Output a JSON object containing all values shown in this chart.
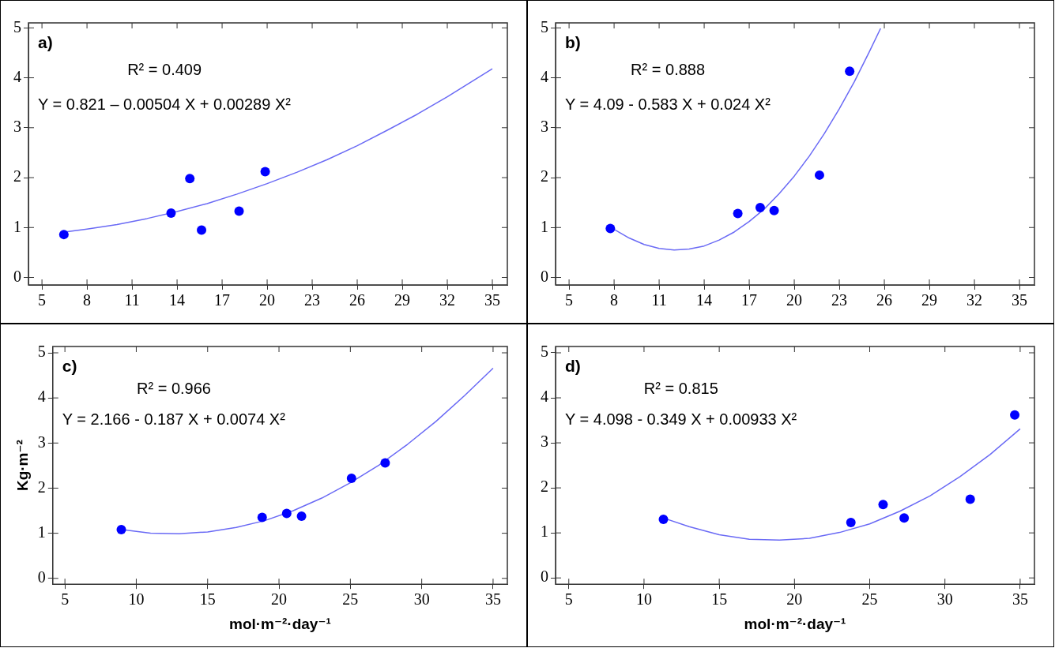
{
  "chart_data": [
    {
      "type": "scatter",
      "annotations": [
        "a)",
        "R² = 0.409",
        "Y = 0.821 – 0.00504 X + 0.00289 X²"
      ],
      "xlim": [
        4.1,
        36
      ],
      "xticks": [
        5,
        8,
        11,
        14,
        17,
        20,
        23,
        26,
        29,
        32,
        35
      ],
      "ylim": [
        -0.15,
        5.1
      ],
      "yticks": [
        0,
        1,
        2,
        3,
        4,
        5
      ],
      "legend": false,
      "series": [
        {
          "type": "scatter",
          "color": "#0000ff",
          "marker": "circle",
          "x": [
            6.46,
            13.6,
            14.85,
            15.63,
            18.13,
            19.87
          ],
          "values": [
            0.86,
            1.29,
            1.98,
            0.95,
            1.33,
            2.12
          ]
        },
        {
          "type": "line",
          "color": "#6a6af5",
          "marker": "none",
          "line_style": "solid",
          "x": [
            6.5,
            8,
            10,
            12,
            14,
            16,
            18,
            20,
            22,
            24,
            26,
            28,
            30,
            32,
            35
          ],
          "values": [
            0.91,
            0.97,
            1.06,
            1.18,
            1.32,
            1.48,
            1.67,
            1.88,
            2.11,
            2.36,
            2.64,
            2.95,
            3.27,
            3.62,
            4.18
          ]
        }
      ]
    },
    {
      "type": "scatter",
      "annotations": [
        "b)",
        "R² = 0.888",
        "Y = 4.09 - 0.583 X + 0.024 X²"
      ],
      "xlim": [
        4.1,
        36
      ],
      "xticks": [
        5,
        8,
        11,
        14,
        17,
        20,
        23,
        26,
        29,
        32,
        35
      ],
      "ylim": [
        -0.15,
        5.1
      ],
      "yticks": [
        0,
        1,
        2,
        3,
        4,
        5
      ],
      "legend": false,
      "series": [
        {
          "type": "scatter",
          "color": "#0000ff",
          "marker": "circle",
          "x": [
            7.75,
            16.24,
            17.73,
            18.66,
            21.68,
            23.69
          ],
          "values": [
            0.98,
            1.28,
            1.4,
            1.34,
            2.05,
            4.13
          ]
        },
        {
          "type": "line",
          "color": "#6a6af5",
          "marker": "none",
          "line_style": "solid",
          "x": [
            7.8,
            9,
            10,
            11,
            12,
            13,
            14,
            15,
            16,
            17,
            18,
            19,
            20,
            21,
            22,
            23,
            24,
            25,
            25.75
          ],
          "values": [
            1.0,
            0.79,
            0.66,
            0.58,
            0.55,
            0.57,
            0.63,
            0.75,
            0.91,
            1.12,
            1.37,
            1.68,
            2.03,
            2.43,
            2.88,
            3.38,
            3.92,
            4.52,
            4.99
          ]
        }
      ]
    },
    {
      "type": "scatter",
      "annotations": [
        "c)",
        "R² = 0.966",
        "Y = 2.166 - 0.187 X + 0.0074 X²"
      ],
      "xlabel": "mol·m⁻²·day⁻¹",
      "ylabel": "Kg·m⁻²",
      "xlim": [
        4.15,
        36
      ],
      "xticks": [
        5,
        10,
        15,
        20,
        25,
        30,
        35
      ],
      "ylim": [
        -0.13,
        5.14
      ],
      "yticks": [
        0,
        1,
        2,
        3,
        4,
        5
      ],
      "legend": false,
      "series": [
        {
          "type": "scatter",
          "color": "#0000ff",
          "marker": "circle",
          "x": [
            8.95,
            18.82,
            20.54,
            21.58,
            25.08,
            27.44
          ],
          "values": [
            1.08,
            1.35,
            1.44,
            1.38,
            2.22,
            2.56
          ]
        },
        {
          "type": "line",
          "color": "#6a6af5",
          "marker": "none",
          "line_style": "solid",
          "x": [
            9,
            11,
            13,
            15,
            17,
            19,
            21,
            23,
            25,
            27,
            29,
            31,
            33,
            35
          ],
          "values": [
            1.08,
            1.0,
            0.99,
            1.03,
            1.13,
            1.28,
            1.5,
            1.78,
            2.12,
            2.51,
            2.97,
            3.48,
            4.05,
            4.66
          ]
        }
      ]
    },
    {
      "type": "scatter",
      "annotations": [
        "d)",
        "R² = 0.815",
        "Y = 4.098 - 0.349 X + 0.00933 X²"
      ],
      "xlabel": "mol·m⁻²·day⁻¹",
      "xlim": [
        4.12,
        35.95
      ],
      "xticks": [
        5,
        10,
        15,
        20,
        25,
        30,
        35
      ],
      "ylim": [
        -0.14,
        5.14
      ],
      "yticks": [
        0,
        1,
        2,
        3,
        4,
        5
      ],
      "legend": false,
      "series": [
        {
          "type": "scatter",
          "color": "#0000ff",
          "marker": "circle",
          "x": [
            11.29,
            23.75,
            25.89,
            27.29,
            31.68,
            34.64
          ],
          "values": [
            1.3,
            1.23,
            1.63,
            1.33,
            1.75,
            3.62
          ]
        },
        {
          "type": "line",
          "color": "#6a6af5",
          "marker": "none",
          "line_style": "solid",
          "x": [
            11.3,
            13,
            15,
            17,
            19,
            21,
            23,
            25,
            27,
            29,
            31,
            33,
            35
          ],
          "values": [
            1.33,
            1.14,
            0.96,
            0.86,
            0.84,
            0.88,
            1.01,
            1.2,
            1.48,
            1.82,
            2.25,
            2.74,
            3.31
          ]
        }
      ]
    }
  ]
}
